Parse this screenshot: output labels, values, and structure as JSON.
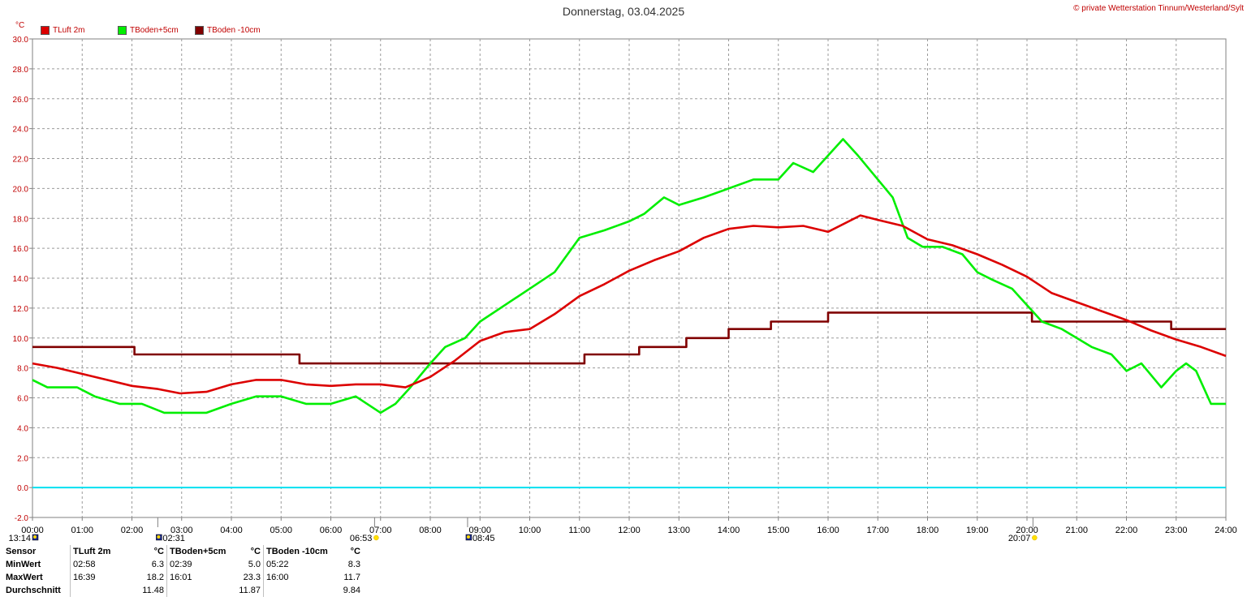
{
  "title": "Donnerstag, 03.04.2025",
  "copyright": "© private Wetterstation Tinnum/Westerland/Sylt",
  "unit": "°C",
  "colors": {
    "tluft": "#dc0000",
    "tboden5": "#00ee00",
    "tboden10": "#800000",
    "zero": "#00e0f0",
    "label": "#c00000"
  },
  "chart_data": {
    "type": "line",
    "xlabel": "",
    "ylabel": "°C",
    "xlim": [
      0,
      24
    ],
    "ylim": [
      -2,
      30
    ],
    "x_ticks": [
      "00:00",
      "01:00",
      "02:00",
      "03:00",
      "04:00",
      "05:00",
      "06:00",
      "07:00",
      "08:00",
      "09:00",
      "10:00",
      "11:00",
      "12:00",
      "13:00",
      "14:00",
      "15:00",
      "16:00",
      "17:00",
      "18:00",
      "19:00",
      "20:00",
      "21:00",
      "22:00",
      "23:00",
      "24:00"
    ],
    "y_ticks": [
      "-2.0",
      "0.0",
      "2.0",
      "4.0",
      "6.0",
      "8.0",
      "10.0",
      "12.0",
      "14.0",
      "16.0",
      "18.0",
      "20.0",
      "22.0",
      "24.0",
      "26.0",
      "28.0",
      "30.0"
    ],
    "grid": true,
    "legend_position": "top-left",
    "series": [
      {
        "name": "TLuft 2m",
        "x": [
          0,
          0.5,
          1,
          1.5,
          2,
          2.5,
          2.97,
          3.5,
          4,
          4.5,
          5,
          5.5,
          6,
          6.5,
          7,
          7.5,
          8,
          8.5,
          9,
          9.5,
          10,
          10.5,
          11,
          11.5,
          12,
          12.5,
          13,
          13.5,
          14,
          14.5,
          15,
          15.5,
          16,
          16.65,
          17,
          17.5,
          18,
          18.5,
          19,
          19.5,
          20,
          20.5,
          21,
          21.5,
          22,
          22.5,
          23,
          23.5,
          24
        ],
        "y": [
          8.3,
          8.0,
          7.6,
          7.2,
          6.8,
          6.6,
          6.3,
          6.4,
          6.9,
          7.2,
          7.2,
          6.9,
          6.8,
          6.9,
          6.9,
          6.7,
          7.4,
          8.5,
          9.8,
          10.4,
          10.6,
          11.6,
          12.8,
          13.6,
          14.5,
          15.2,
          15.8,
          16.7,
          17.3,
          17.5,
          17.4,
          17.5,
          17.1,
          18.2,
          17.9,
          17.5,
          16.6,
          16.2,
          15.6,
          14.9,
          14.1,
          13.0,
          12.4,
          11.8,
          11.2,
          10.5,
          9.9,
          9.4,
          8.8
        ]
      },
      {
        "name": "TBoden+5cm",
        "x": [
          0,
          0.3,
          0.55,
          0.9,
          1.25,
          1.75,
          2.2,
          2.65,
          3.0,
          3.5,
          4.0,
          4.5,
          5.0,
          5.5,
          6.0,
          6.5,
          7.0,
          7.3,
          7.6,
          8.0,
          8.3,
          8.7,
          9.0,
          9.5,
          10.0,
          10.5,
          11.0,
          11.5,
          12.0,
          12.3,
          12.7,
          13.0,
          13.5,
          14.0,
          14.5,
          15.0,
          15.3,
          15.7,
          16.0,
          16.3,
          16.6,
          17.0,
          17.3,
          17.6,
          17.9,
          18.3,
          18.7,
          19.0,
          19.3,
          19.7,
          20.0,
          20.3,
          20.7,
          21.0,
          21.3,
          21.7,
          22.0,
          22.3,
          22.7,
          23.0,
          23.2,
          23.4,
          23.7,
          24.0
        ],
        "y": [
          7.2,
          6.7,
          6.7,
          6.7,
          6.1,
          5.6,
          5.6,
          5.0,
          5.0,
          5.0,
          5.6,
          6.1,
          6.1,
          5.6,
          5.6,
          6.1,
          5.0,
          5.6,
          6.7,
          8.3,
          9.4,
          10.0,
          11.1,
          12.2,
          13.3,
          14.4,
          16.7,
          17.2,
          17.8,
          18.3,
          19.4,
          18.9,
          19.4,
          20.0,
          20.6,
          20.6,
          21.7,
          21.1,
          22.2,
          23.3,
          22.2,
          20.6,
          19.4,
          16.7,
          16.1,
          16.1,
          15.6,
          14.4,
          13.9,
          13.3,
          12.2,
          11.1,
          10.6,
          10.0,
          9.4,
          8.9,
          7.8,
          8.3,
          6.7,
          7.8,
          8.3,
          7.8,
          5.6,
          5.6
        ]
      },
      {
        "name": "TBoden -10cm",
        "x": [
          0,
          2.05,
          2.05,
          5.37,
          5.37,
          11.1,
          11.1,
          12.2,
          12.2,
          13.15,
          13.15,
          14.0,
          14.0,
          14.85,
          14.85,
          16.0,
          16.0,
          20.1,
          20.1,
          22.9,
          22.9,
          24.0
        ],
        "y": [
          9.4,
          9.4,
          8.9,
          8.9,
          8.3,
          8.3,
          8.9,
          8.9,
          9.4,
          9.4,
          10.0,
          10.0,
          10.6,
          10.6,
          11.1,
          11.1,
          11.7,
          11.7,
          11.1,
          11.1,
          10.6,
          10.6
        ]
      }
    ],
    "time_markers": [
      {
        "time": "13:14",
        "hour": 0,
        "icon": "moon-set-icon"
      },
      {
        "time": "02:31",
        "hour": 2.52,
        "icon": "moonrise-icon"
      },
      {
        "time": "06:53",
        "hour": 6.88,
        "icon": "sunrise-icon"
      },
      {
        "time": "08:45",
        "hour": 8.75,
        "icon": "moonset-icon"
      },
      {
        "time": "20:07",
        "hour": 20.12,
        "icon": "sunset-icon"
      }
    ]
  },
  "stats": {
    "labels": {
      "sensor": "Sensor",
      "min": "MinWert",
      "max": "MaxWert",
      "avg": "Durchschnitt",
      "unit": "°C"
    },
    "columns": [
      {
        "name": "TLuft 2m",
        "min_time": "02:58",
        "min": "6.3",
        "max_time": "16:39",
        "max": "18.2",
        "avg": "11.48"
      },
      {
        "name": "TBoden+5cm",
        "min_time": "02:39",
        "min": "5.0",
        "max_time": "16:01",
        "max": "23.3",
        "avg": "11.87"
      },
      {
        "name": "TBoden -10cm",
        "min_time": "05:22",
        "min": "8.3",
        "max_time": "16:00",
        "max": "11.7",
        "avg": "9.84"
      }
    ]
  }
}
